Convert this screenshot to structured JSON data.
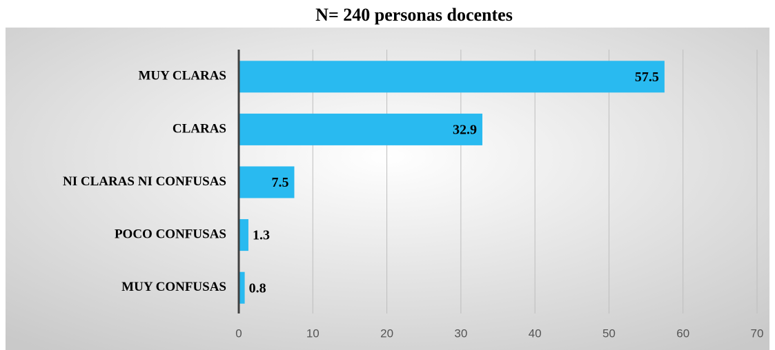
{
  "chart_data": {
    "type": "bar",
    "orientation": "horizontal",
    "title": "N= 240 personas docentes",
    "categories": [
      "MUY CLARAS",
      "CLARAS",
      "NI CLARAS NI CONFUSAS",
      "POCO CONFUSAS",
      "MUY CONFUSAS"
    ],
    "values": [
      57.5,
      32.9,
      7.5,
      1.3,
      0.8
    ],
    "color": "#29baf0",
    "xlim": [
      0,
      70
    ],
    "xticks": [
      0,
      10,
      20,
      30,
      40,
      50,
      60,
      70
    ],
    "grid": true
  }
}
